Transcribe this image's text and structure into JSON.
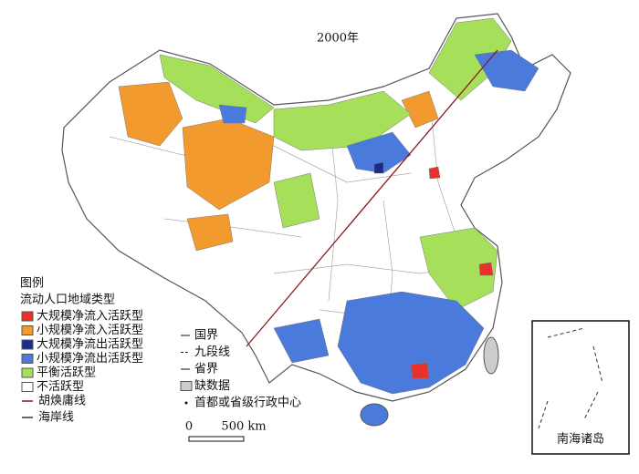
{
  "title": "2000年",
  "legend": {
    "title": "图例",
    "subtitle": "流动人口地域类型",
    "items": [
      {
        "label": "大规模净流入活跃型",
        "color": "#e8312a"
      },
      {
        "label": "小规模净流入活跃型",
        "color": "#f39a2e"
      },
      {
        "label": "大规模净流出活跃型",
        "color": "#1c2a8c"
      },
      {
        "label": "小规模净流出活跃型",
        "color": "#4a7bdc"
      },
      {
        "label": "平衡活跃型",
        "color": "#a6e05a"
      },
      {
        "label": "不活跃型",
        "color": "#ffffff"
      }
    ],
    "lines": [
      {
        "label": "胡焕庸线",
        "color": "#8b1a1a"
      },
      {
        "label": "海岸线",
        "color": "#333333"
      }
    ]
  },
  "boundaries": {
    "items": [
      {
        "label": "国界"
      },
      {
        "label": "九段线"
      },
      {
        "label": "省界"
      },
      {
        "label": "缺数据"
      },
      {
        "label": "首都或省级行政中心"
      }
    ]
  },
  "scale": {
    "labels": [
      "0",
      "500 km"
    ]
  },
  "inset": {
    "label": "南海诸岛"
  }
}
